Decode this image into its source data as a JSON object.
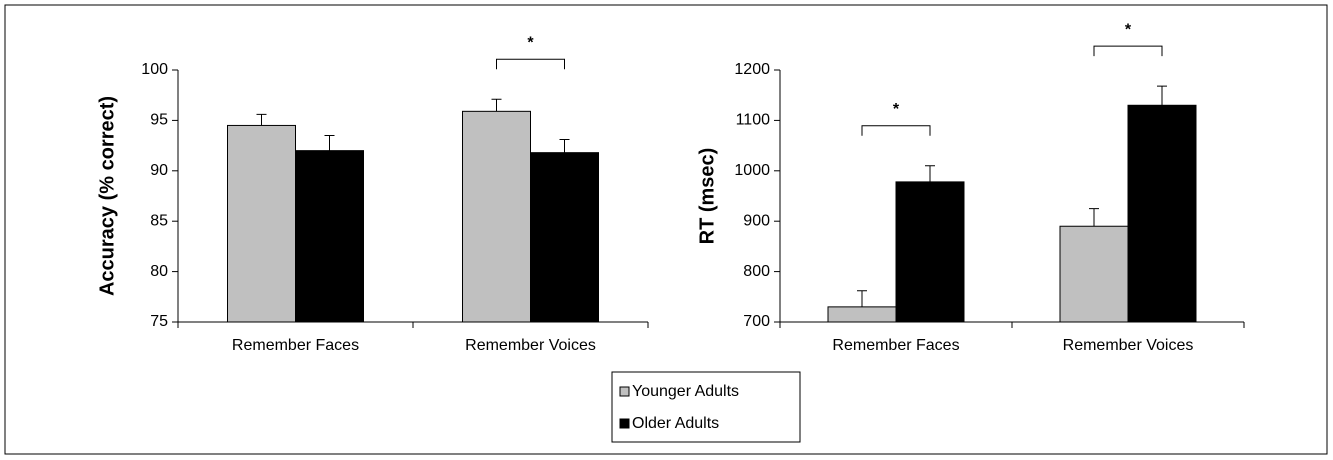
{
  "chart_data": [
    {
      "type": "bar",
      "ylabel": "Accuracy (% correct)",
      "categories": [
        "Remember Faces",
        "Remember Voices"
      ],
      "series": [
        {
          "name": "Younger Adults",
          "color": "#c0c0c0",
          "values": [
            94.5,
            95.9
          ],
          "errors": [
            1.1,
            1.2
          ]
        },
        {
          "name": "Older Adults",
          "color": "#000000",
          "values": [
            92.0,
            91.8
          ],
          "errors": [
            1.5,
            1.3
          ]
        }
      ],
      "ylim": [
        75,
        100
      ],
      "yticks": [
        75,
        80,
        85,
        90,
        95,
        100
      ],
      "significance": [
        {
          "label": "*",
          "category": "Remember Voices"
        }
      ]
    },
    {
      "type": "bar",
      "ylabel": "RT (msec)",
      "categories": [
        "Remember Faces",
        "Remember Voices"
      ],
      "series": [
        {
          "color": "#c0c0c0",
          "values": [
            730,
            890
          ],
          "errors": [
            32,
            35
          ]
        },
        {
          "color": "#000000",
          "values": [
            978,
            1130
          ],
          "errors": [
            32,
            38
          ]
        }
      ],
      "ylim": [
        700,
        1200
      ],
      "yticks": [
        700,
        800,
        900,
        1000,
        1100,
        1200
      ],
      "significance": [
        {
          "label": "*",
          "category": "Remember Faces"
        },
        {
          "label": "*",
          "category": "Remember Voices"
        }
      ]
    }
  ]
}
